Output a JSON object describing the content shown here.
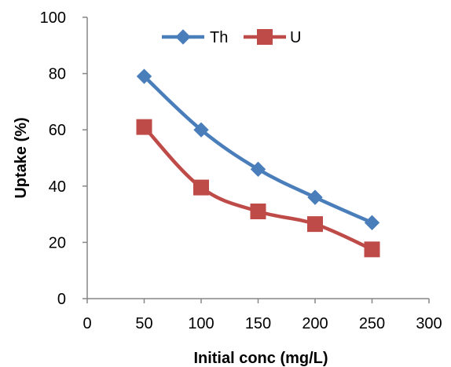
{
  "chart_data": {
    "type": "line",
    "title": "",
    "xlabel": "Initial conc (mg/L)",
    "ylabel": "Uptake (%)",
    "xlim": [
      0,
      300
    ],
    "ylim": [
      0,
      100
    ],
    "x_ticks": [
      "0",
      "50",
      "100",
      "150",
      "200",
      "250",
      "300"
    ],
    "y_ticks": [
      "0",
      "20",
      "40",
      "60",
      "80",
      "100"
    ],
    "grid": false,
    "legend_position": "top",
    "series": [
      {
        "name": "Th",
        "color": "#4a7ebb",
        "marker": "diamond",
        "x": [
          50,
          100,
          150,
          200,
          250
        ],
        "y": [
          79,
          60,
          46,
          36,
          27
        ]
      },
      {
        "name": "U",
        "color": "#be4b48",
        "marker": "square",
        "x": [
          50,
          100,
          150,
          200,
          250
        ],
        "y": [
          61,
          39.5,
          31,
          26.5,
          17.5
        ]
      }
    ]
  }
}
